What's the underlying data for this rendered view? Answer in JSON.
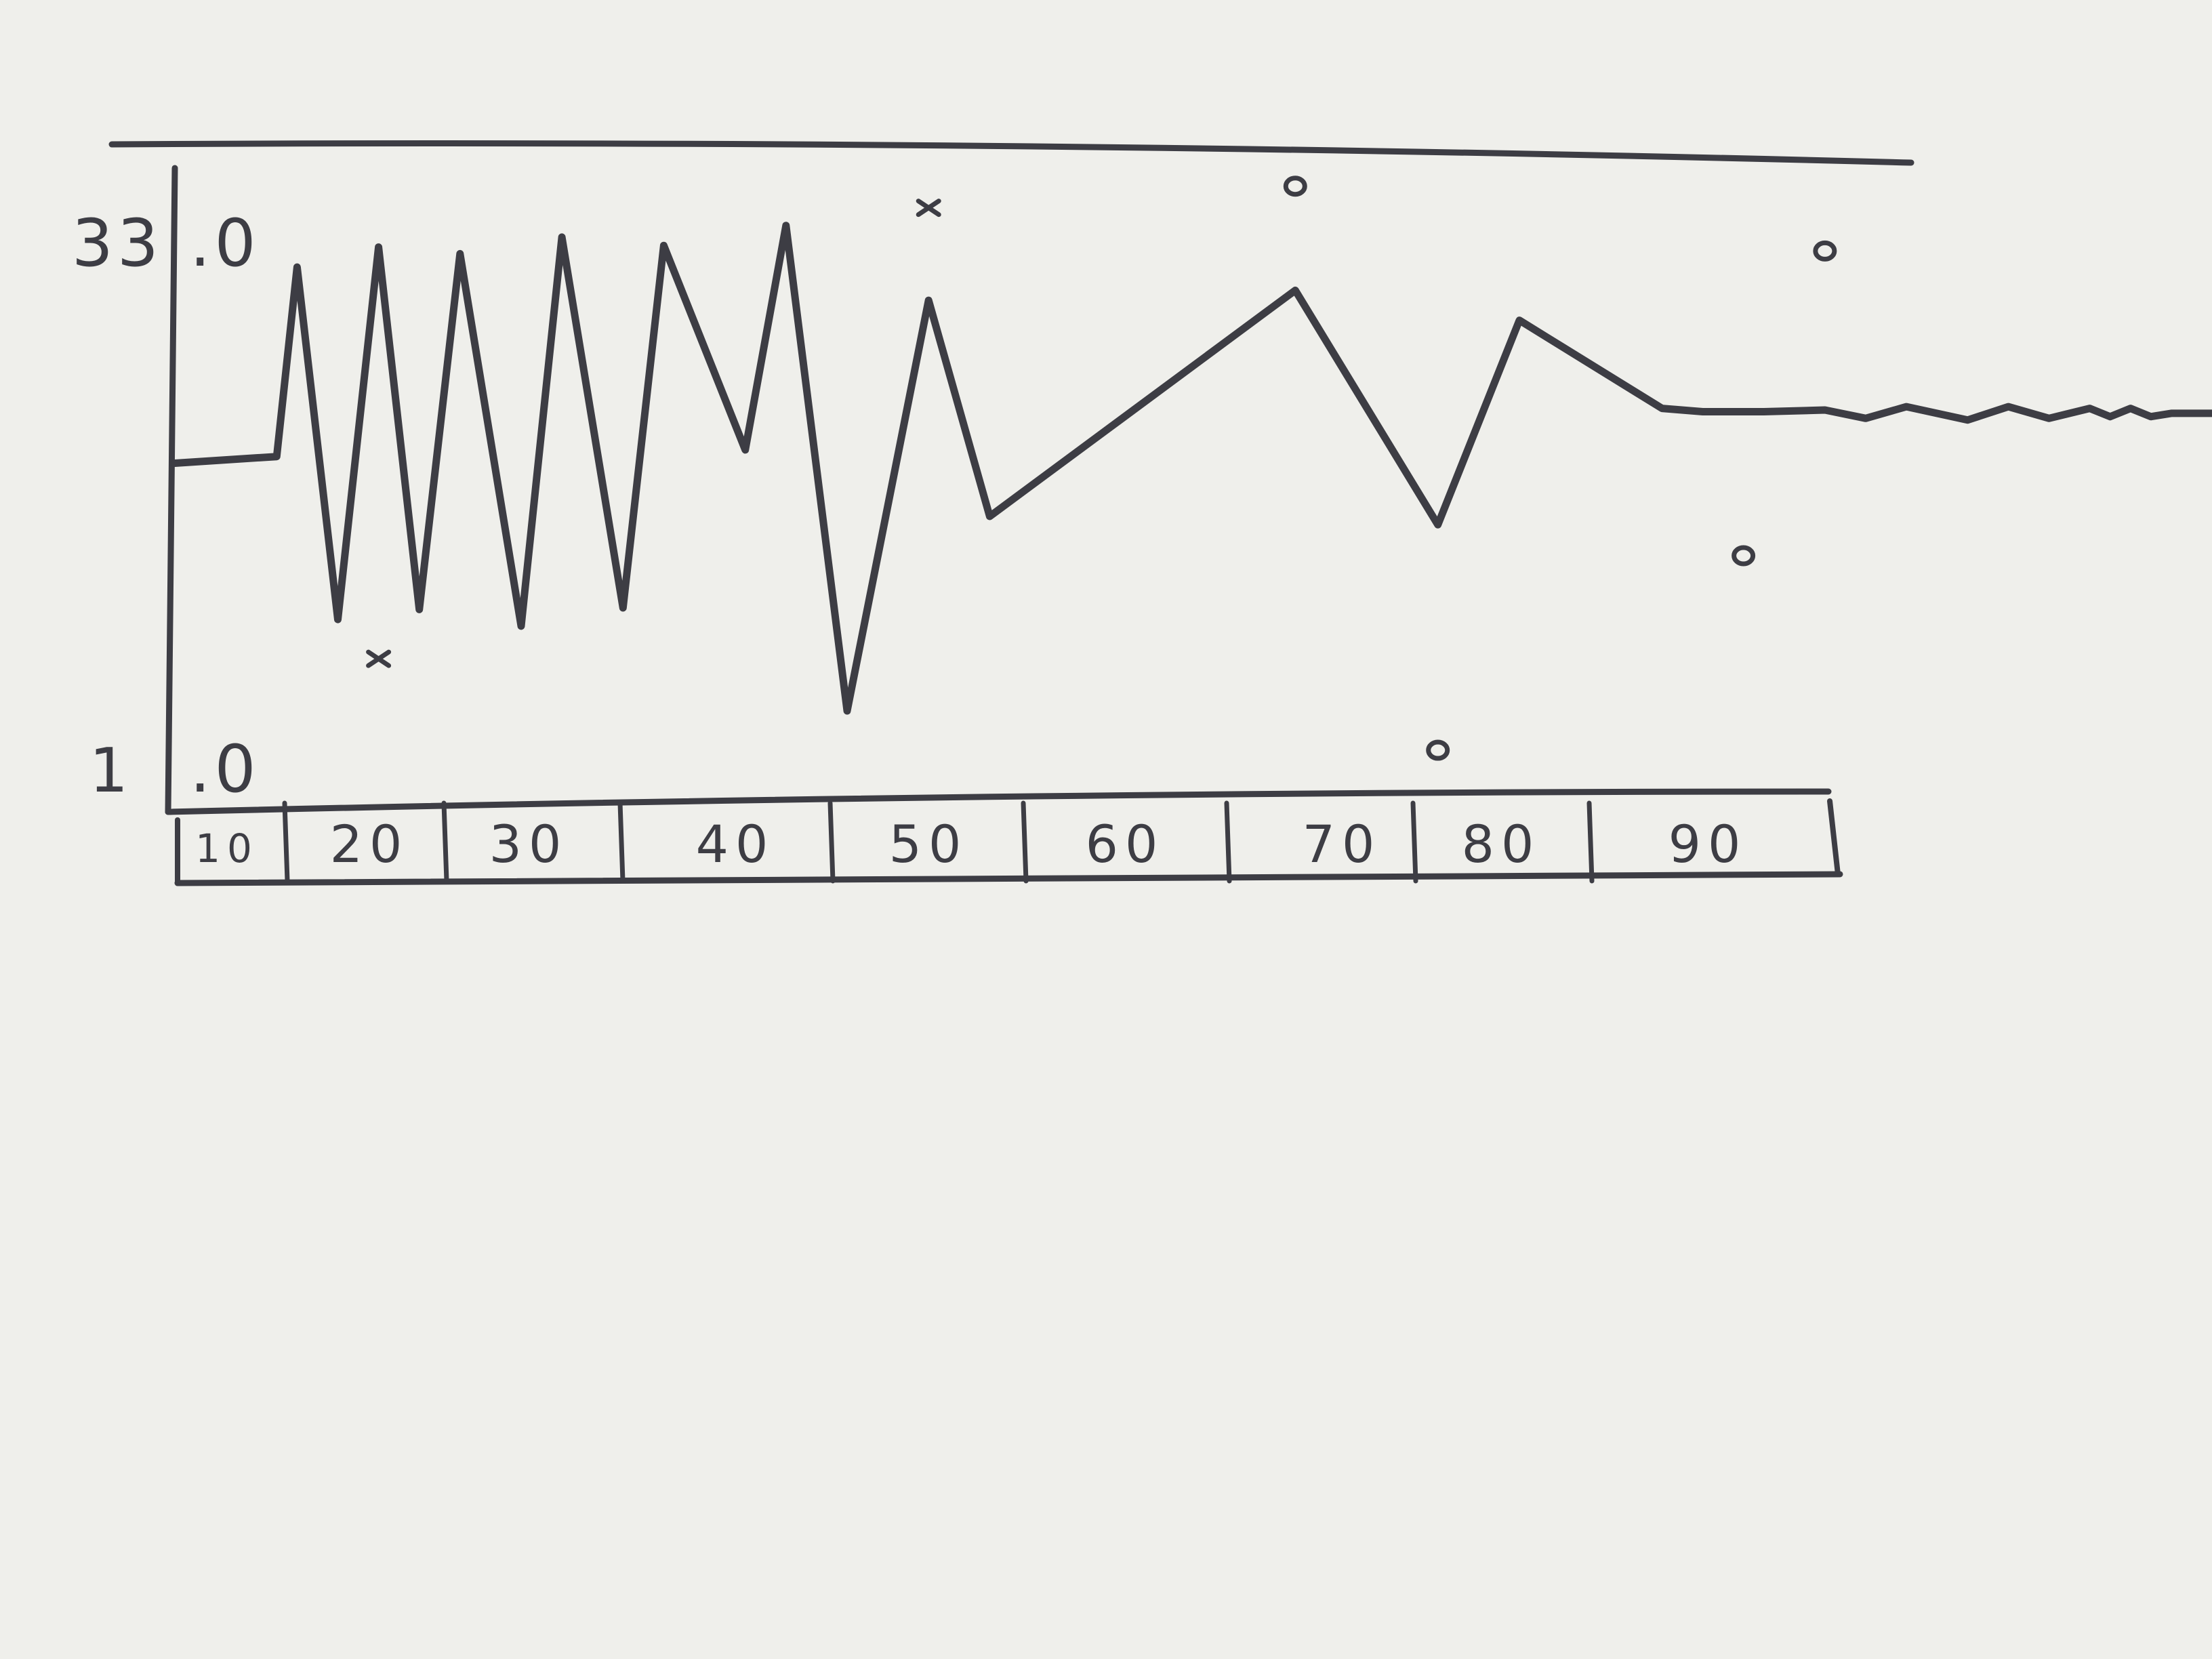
{
  "chart_data": {
    "type": "line",
    "title": "",
    "xlabel": "",
    "ylabel": "",
    "x_tick_labels": [
      "10",
      "20",
      "30",
      "40",
      "50",
      "60",
      "70",
      "80",
      "90"
    ],
    "y_tick_labels": [
      "33",
      ".0",
      "1",
      ".0"
    ],
    "y_ticks": [
      33.0,
      1.0
    ],
    "ylim": [
      1.0,
      33.0
    ],
    "xlim": [
      5,
      105
    ],
    "grid": false,
    "legend": "none",
    "series": [
      {
        "x": [
          5,
          10,
          11,
          13,
          15,
          17,
          19,
          22,
          24,
          27,
          29,
          33,
          35,
          38,
          42,
          45,
          60,
          67,
          71,
          78,
          80,
          83,
          86,
          88,
          90,
          93,
          95,
          97,
          99,
          100,
          101,
          102,
          103,
          105
        ],
        "y": [
          19.2,
          19.6,
          31.0,
          9.8,
          32.2,
          10.4,
          31.8,
          9.4,
          32.8,
          10.5,
          32.3,
          20.0,
          33.5,
          4.3,
          29.0,
          16.0,
          29.6,
          15.5,
          27.8,
          22.5,
          22.3,
          22.3,
          22.4,
          21.9,
          22.6,
          21.8,
          22.6,
          21.9,
          22.5,
          22.0,
          22.5,
          22.0,
          22.2,
          22.2
        ]
      }
    ],
    "markers": [
      {
        "symbol": "×",
        "x": 15,
        "y": 9.8,
        "position": "below"
      },
      {
        "symbol": "×",
        "x": 42,
        "y": 32.2,
        "position": "above"
      },
      {
        "symbol": "o",
        "x": 60,
        "y": 33.5,
        "position": "above"
      },
      {
        "symbol": "o",
        "x": 67,
        "y": 4.3,
        "position": "below"
      },
      {
        "symbol": "o",
        "x": 82,
        "y": 16.0,
        "position": "below"
      },
      {
        "symbol": "o",
        "x": 86,
        "y": 29.6,
        "position": "above"
      }
    ],
    "colors": {
      "ink": "#3d3d44",
      "paper": "#efefeb"
    }
  }
}
